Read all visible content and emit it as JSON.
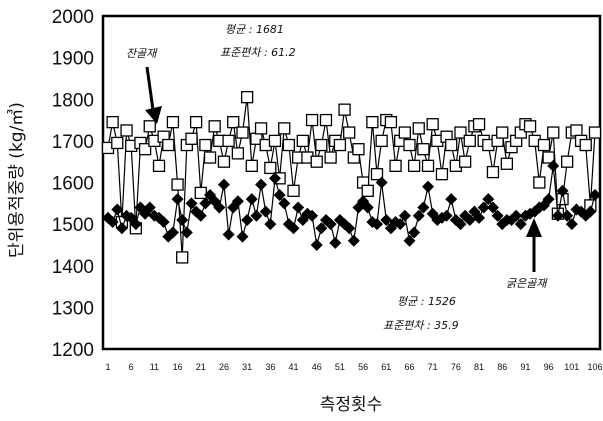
{
  "chart_data": {
    "type": "line",
    "ylabel": "단위용적중량 (kg/㎥)",
    "xlabel": "측정횟수",
    "ylim": [
      1200,
      2000
    ],
    "yticks": [
      1200,
      1300,
      1400,
      1500,
      1600,
      1700,
      1800,
      1900,
      2000
    ],
    "xlim": [
      1,
      106
    ],
    "xticks": [
      1,
      6,
      11,
      16,
      21,
      26,
      31,
      36,
      41,
      46,
      51,
      56,
      61,
      66,
      71,
      76,
      81,
      86,
      91,
      96,
      101,
      106
    ],
    "grid": false,
    "series": [
      {
        "name": "잔골재",
        "marker": "open-square",
        "color": "#000000",
        "values": [
          1683,
          1745,
          1695,
          1505,
          1725,
          1688,
          1490,
          1695,
          1680,
          1735,
          1700,
          1640,
          1710,
          1690,
          1745,
          1595,
          1420,
          1690,
          1705,
          1745,
          1575,
          1690,
          1660,
          1735,
          1700,
          1650,
          1700,
          1745,
          1670,
          1720,
          1805,
          1640,
          1705,
          1730,
          1690,
          1635,
          1700,
          1610,
          1730,
          1690,
          1580,
          1660,
          1700,
          1660,
          1750,
          1650,
          1690,
          1750,
          1660,
          1700,
          1690,
          1775,
          1720,
          1660,
          1680,
          1600,
          1580,
          1745,
          1620,
          1700,
          1750,
          1745,
          1640,
          1700,
          1720,
          1690,
          1640,
          1730,
          1680,
          1640,
          1740,
          1700,
          1620,
          1710,
          1690,
          1640,
          1720,
          1650,
          1700,
          1735,
          1740,
          1700,
          1690,
          1625,
          1700,
          1720,
          1645,
          1685,
          1700,
          1720,
          1740,
          1735,
          1700,
          1600,
          1690,
          1660,
          1720,
          1525,
          1560,
          1650,
          1720,
          1725,
          1700,
          1690,
          1545,
          1720
        ]
      },
      {
        "name": "굵은골재",
        "marker": "filled-diamond",
        "color": "#000000",
        "values": [
          1515,
          1505,
          1535,
          1490,
          1520,
          1515,
          1500,
          1540,
          1525,
          1540,
          1520,
          1515,
          1505,
          1470,
          1480,
          1560,
          1510,
          1480,
          1550,
          1530,
          1520,
          1550,
          1570,
          1555,
          1540,
          1595,
          1475,
          1540,
          1555,
          1470,
          1510,
          1560,
          1520,
          1595,
          1530,
          1500,
          1610,
          1570,
          1550,
          1500,
          1490,
          1540,
          1510,
          1525,
          1520,
          1450,
          1490,
          1510,
          1500,
          1455,
          1510,
          1500,
          1490,
          1460,
          1540,
          1555,
          1540,
          1505,
          1500,
          1600,
          1510,
          1490,
          1505,
          1500,
          1520,
          1460,
          1480,
          1520,
          1540,
          1590,
          1525,
          1510,
          1515,
          1520,
          1560,
          1510,
          1500,
          1520,
          1510,
          1530,
          1515,
          1540,
          1560,
          1540,
          1520,
          1500,
          1510,
          1510,
          1520,
          1500,
          1520,
          1525,
          1530,
          1540,
          1545,
          1560,
          1640,
          1520,
          1580,
          1520,
          1500,
          1535,
          1530,
          1520,
          1530,
          1570
        ]
      }
    ]
  },
  "annotations": {
    "fine_mean": "평균 : 1681",
    "fine_std": "표준편차 : 61.2",
    "fine_label": "잔골재",
    "coarse_mean": "평균 : 1526",
    "coarse_std": "표준편차 : 35.9",
    "coarse_label": "굵은골재"
  }
}
